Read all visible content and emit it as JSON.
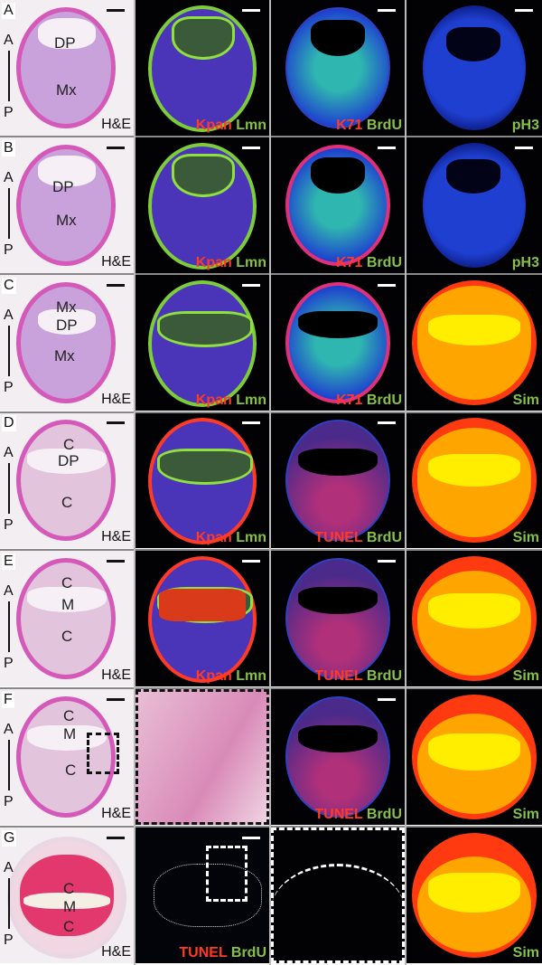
{
  "figure": {
    "axis": {
      "anterior": "A",
      "posterior": "P"
    },
    "rows": [
      {
        "letter": "A",
        "he": {
          "labels": [
            "DP",
            "Mx"
          ],
          "caption": "H&E"
        },
        "col2": {
          "red": "Kpan",
          "green": "Lmn"
        },
        "col3": {
          "red": "K71",
          "green": "BrdU"
        },
        "col4": {
          "red": "",
          "green": "pH3"
        }
      },
      {
        "letter": "B",
        "he": {
          "labels": [
            "DP",
            "Mx"
          ],
          "caption": "H&E"
        },
        "col2": {
          "red": "Kpan",
          "green": "Lmn"
        },
        "col3": {
          "red": "K71",
          "green": "BrdU"
        },
        "col4": {
          "red": "",
          "green": "pH3"
        }
      },
      {
        "letter": "C",
        "he": {
          "labels": [
            "Mx",
            "DP",
            "Mx"
          ],
          "caption": "H&E"
        },
        "col2": {
          "red": "Kpan",
          "green": "Lmn"
        },
        "col3": {
          "red": "K71",
          "green": "BrdU"
        },
        "col4": {
          "red": "",
          "green": "Sim"
        }
      },
      {
        "letter": "D",
        "he": {
          "labels": [
            "C",
            "DP",
            "C"
          ],
          "caption": "H&E"
        },
        "col2": {
          "red": "Kpan",
          "green": "Lmn"
        },
        "col3": {
          "red": "TUNEL",
          "green": "BrdU"
        },
        "col4": {
          "red": "",
          "green": "Sim"
        }
      },
      {
        "letter": "E",
        "he": {
          "labels": [
            "C",
            "M",
            "C"
          ],
          "caption": "H&E"
        },
        "col2": {
          "red": "Kpan",
          "green": "Lmn"
        },
        "col3": {
          "red": "TUNEL",
          "green": "BrdU"
        },
        "col4": {
          "red": "",
          "green": "Sim"
        }
      },
      {
        "letter": "F",
        "he": {
          "labels": [
            "C",
            "M",
            "C"
          ],
          "caption": "H&E"
        },
        "col2": {
          "red": "",
          "green": ""
        },
        "col3": {
          "red": "TUNEL",
          "green": "BrdU"
        },
        "col4": {
          "red": "",
          "green": "Sim"
        }
      },
      {
        "letter": "G",
        "he": {
          "labels": [
            "C",
            "M",
            "C"
          ],
          "caption": "H&E"
        },
        "col2": {
          "red": "TUNEL",
          "green": "BrdU"
        },
        "col3": {
          "red": "",
          "green": ""
        },
        "col4": {
          "red": "",
          "green": "Sim"
        }
      }
    ],
    "colors": {
      "label_red": "#ff3a26",
      "label_green": "#86c04a",
      "sim_outer": "#ff3a10",
      "sim_mid": "#ffa500",
      "sim_inner": "#ffee00"
    }
  }
}
